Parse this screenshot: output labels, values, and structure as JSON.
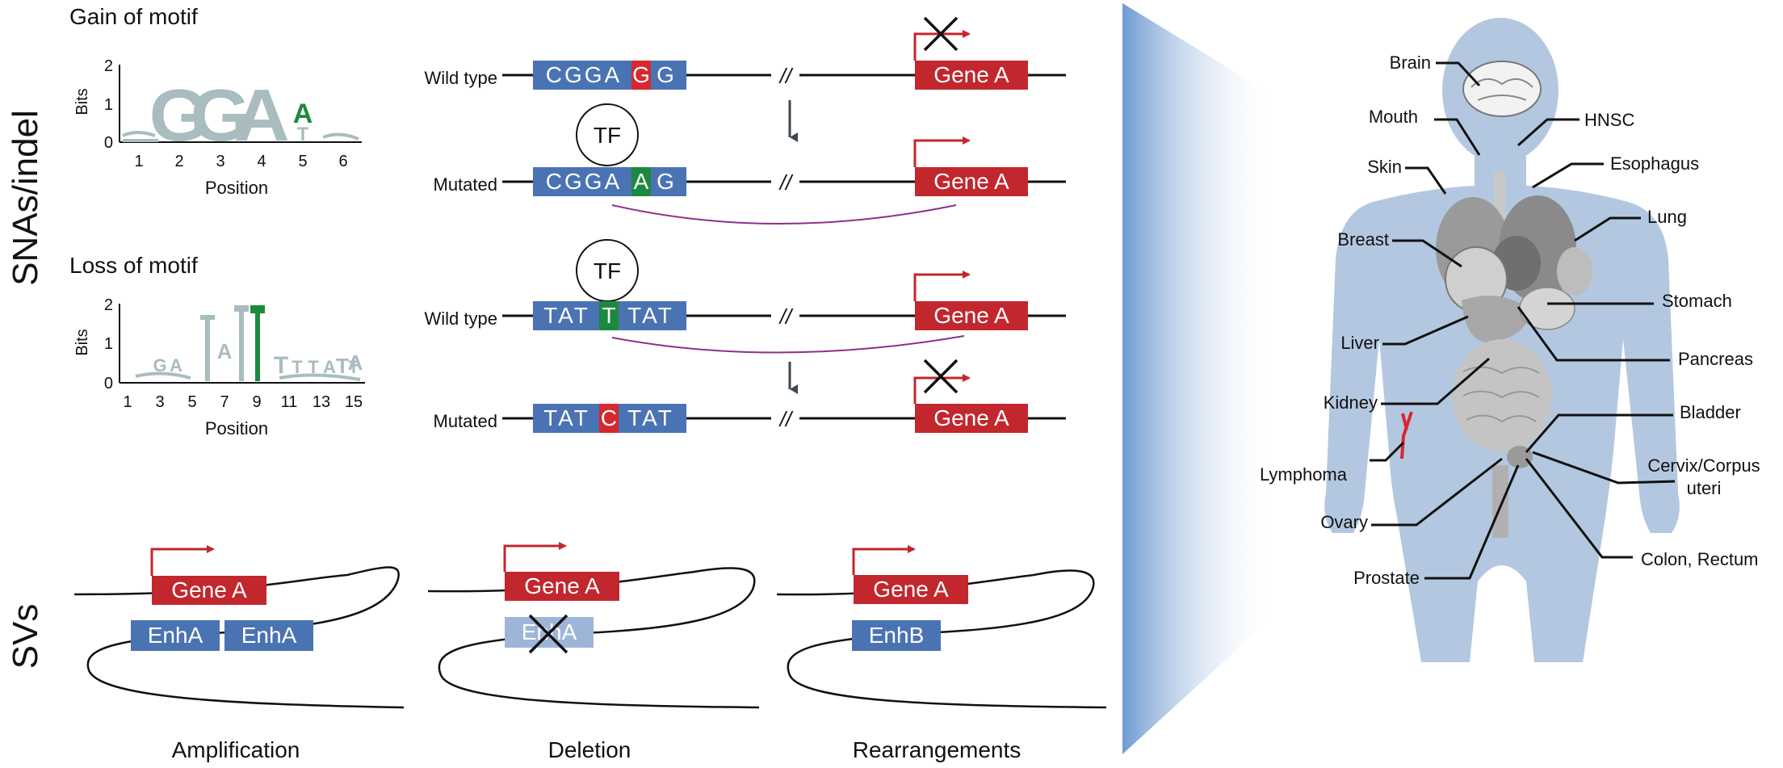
{
  "colors": {
    "seq_blue": "#4a73b3",
    "gene_red": "#c1272d",
    "mut_red": "#d7282f",
    "tf_green": "#1c8a3e",
    "logo_gray": "#a9bcbf",
    "loop_purple": "#8c2f8c",
    "body_blue": "#b3c8e0",
    "faded_blue": "#9db5d8"
  },
  "section_labels": {
    "snas": "SNAs/indel",
    "svs": "SVs"
  },
  "gain_logo": {
    "title": "Gain of motif",
    "ylabel": "Bits",
    "xlabel": "Position",
    "yticks": [
      "2",
      "1",
      "0"
    ],
    "xticks": [
      "1",
      "2",
      "3",
      "4",
      "5",
      "6"
    ],
    "letters": [
      "G",
      "G",
      "A",
      "A",
      "T"
    ]
  },
  "loss_logo": {
    "title": "Loss of motif",
    "ylabel": "Bits",
    "xlabel": "Position",
    "yticks": [
      "2",
      "1",
      "0"
    ],
    "xticks": [
      "1",
      "3",
      "5",
      "7",
      "9",
      "11",
      "13",
      "15"
    ],
    "letters": [
      "G",
      "A",
      "A",
      "T",
      "T",
      "T",
      "A",
      "T",
      "T",
      "A"
    ]
  },
  "rows": [
    {
      "label": "Wild type",
      "seq_pre": "CGGA",
      "seq_mid": "G",
      "seq_post": "G",
      "mid_color": "#d7282f",
      "gene": "Gene A",
      "blocked": true
    },
    {
      "label": "Mutated",
      "seq_pre": "CGGA",
      "seq_mid": "A",
      "seq_post": "G",
      "mid_color": "#1c8a3e",
      "gene": "Gene A",
      "blocked": false,
      "tf": "TF"
    },
    {
      "label": "Wild type",
      "seq_pre": "TAT",
      "seq_mid": "T",
      "seq_post": "TAT",
      "mid_color": "#1c8a3e",
      "gene": "Gene A",
      "blocked": false,
      "tf": "TF"
    },
    {
      "label": "Mutated",
      "seq_pre": "TAT",
      "seq_mid": "C",
      "seq_post": "TAT",
      "mid_color": "#d7282f",
      "gene": "Gene A",
      "blocked": true
    }
  ],
  "break_mark": "//",
  "svs": {
    "amplification": {
      "caption": "Amplification",
      "gene": "Gene A",
      "enh1": "EnhA",
      "enh2": "EnhA"
    },
    "deletion": {
      "caption": "Deletion",
      "gene": "Gene A",
      "enh": "EnhA"
    },
    "rearrangements": {
      "caption": "Rearrangements",
      "gene": "Gene A",
      "enh": "EnhB"
    }
  },
  "cancer_types": {
    "brain": "Brain",
    "mouth": "Mouth",
    "hnsc": "HNSC",
    "skin": "Skin",
    "esophagus": "Esophagus",
    "lung": "Lung",
    "breast": "Breast",
    "stomach": "Stomach",
    "liver": "Liver",
    "pancreas": "Pancreas",
    "kidney": "Kidney",
    "bladder": "Bladder",
    "lymphoma": "Lymphoma",
    "cervix_line1": "Cervix/Corpus",
    "cervix_line2": "uteri",
    "ovary": "Ovary",
    "colon": "Colon, Rectum",
    "prostate": "Prostate"
  }
}
